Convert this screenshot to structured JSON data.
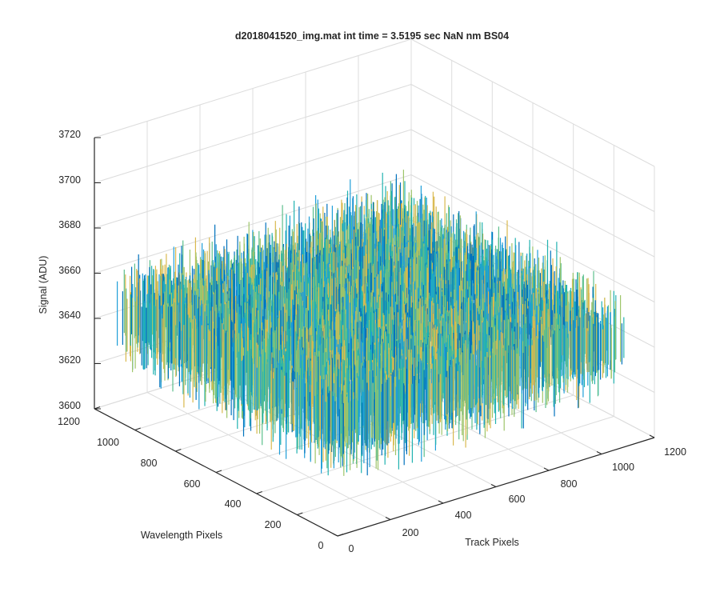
{
  "chart_data": {
    "type": "surface",
    "title": "d2018041520_img.mat int time = 3.5195 sec  NaN nm BS04",
    "x_axis": {
      "label": "Track Pixels",
      "range": [
        0,
        1200
      ],
      "ticks": [
        "0",
        "200",
        "400",
        "600",
        "800",
        "1000",
        "1200"
      ]
    },
    "y_axis": {
      "label": "Wavelength Pixels",
      "range": [
        0,
        1200
      ],
      "ticks": [
        "0",
        "200",
        "400",
        "600",
        "800",
        "1000",
        "1200"
      ]
    },
    "z_axis": {
      "label": "Signal (ADU)",
      "range": [
        3600,
        3720
      ],
      "ticks": [
        "3600",
        "3620",
        "3640",
        "3660",
        "3680",
        "3700",
        "3720"
      ]
    },
    "surface": {
      "x_extent": [
        1,
        1100
      ],
      "y_extent": [
        1,
        1100
      ],
      "z_mean": 3646,
      "z_noise_min": 3620,
      "z_noise_max": 3705,
      "colors": [
        "#0072bd",
        "#1f9ed8",
        "#21b2b0",
        "#5cbf8c",
        "#9ec56a",
        "#d9b94e"
      ]
    },
    "grid": true,
    "view": "3D perspective, azimuth -37.5, elevation 30"
  }
}
